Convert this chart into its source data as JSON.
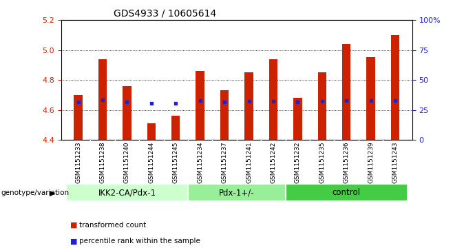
{
  "title": "GDS4933 / 10605614",
  "samples": [
    "GSM1151233",
    "GSM1151238",
    "GSM1151240",
    "GSM1151244",
    "GSM1151245",
    "GSM1151234",
    "GSM1151237",
    "GSM1151241",
    "GSM1151242",
    "GSM1151232",
    "GSM1151235",
    "GSM1151236",
    "GSM1151239",
    "GSM1151243"
  ],
  "bar_values": [
    4.7,
    4.94,
    4.76,
    4.51,
    4.56,
    4.86,
    4.73,
    4.85,
    4.94,
    4.68,
    4.85,
    5.04,
    4.95,
    5.1
  ],
  "percentile_values": [
    4.655,
    4.668,
    4.654,
    4.643,
    4.643,
    4.664,
    4.654,
    4.659,
    4.659,
    4.655,
    4.659,
    4.664,
    4.664,
    4.664
  ],
  "bar_bottom": 4.4,
  "ylim_left": [
    4.4,
    5.2
  ],
  "ylim_right": [
    0,
    100
  ],
  "yticks_left": [
    4.4,
    4.6,
    4.8,
    5.0,
    5.2
  ],
  "yticks_right": [
    0,
    25,
    50,
    75,
    100
  ],
  "ytick_labels_right": [
    "0",
    "25",
    "50",
    "75",
    "100%"
  ],
  "bar_color": "#cc2200",
  "dot_color": "#2222cc",
  "groups": [
    {
      "label": "IKK2-CA/Pdx-1",
      "start": 0,
      "end": 5
    },
    {
      "label": "Pdx-1+/-",
      "start": 5,
      "end": 9
    },
    {
      "label": "control",
      "start": 9,
      "end": 14
    }
  ],
  "group_colors": [
    "#ccffcc",
    "#99ee99",
    "#44cc44"
  ],
  "genotype_label": "genotype/variation",
  "legend_items": [
    {
      "label": "transformed count",
      "color": "#cc2200"
    },
    {
      "label": "percentile rank within the sample",
      "color": "#2222cc"
    }
  ],
  "background_color": "#ffffff",
  "bar_width": 0.35,
  "figsize": [
    6.58,
    3.63
  ],
  "dpi": 100
}
